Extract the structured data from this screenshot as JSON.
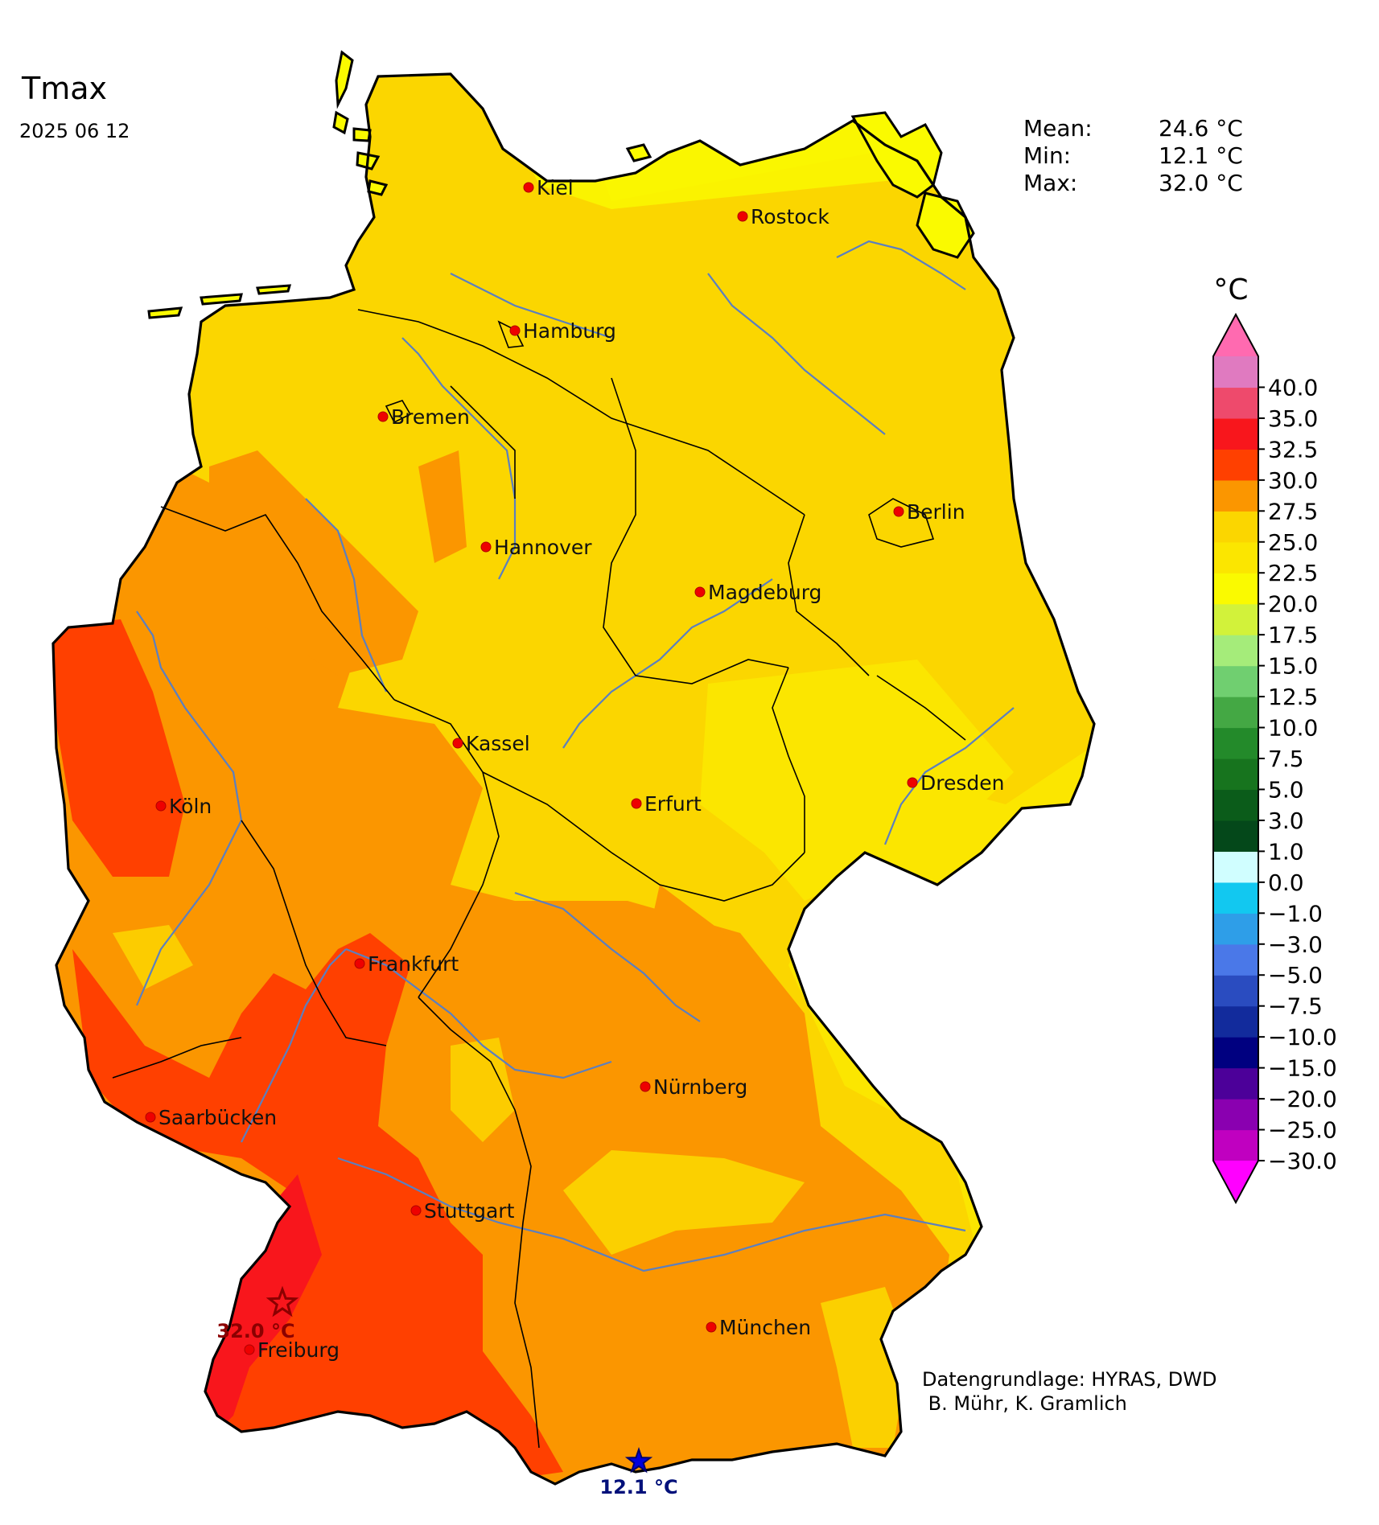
{
  "title": "Tmax",
  "date": "2025 06 12",
  "stats": [
    {
      "label": "Mean:",
      "value": "24.6 °C"
    },
    {
      "label": "Min:",
      "value": "12.1 °C"
    },
    {
      "label": "Max:",
      "value": "32.0 °C"
    }
  ],
  "credits": [
    "Datengrundlage: HYRAS, DWD",
    " B. Mühr, K. Gramlich"
  ],
  "colorbar": {
    "unit": "°C",
    "extend": "both",
    "levels": [
      "−30.0",
      "−25.0",
      "−20.0",
      "−15.0",
      "−10.0",
      "−7.5",
      "−5.0",
      "−3.0",
      "−1.0",
      "0.0",
      "1.0",
      "3.0",
      "5.0",
      "7.5",
      "10.0",
      "12.5",
      "15.0",
      "17.5",
      "20.0",
      "22.5",
      "25.0",
      "27.5",
      "30.0",
      "32.5",
      "35.0",
      "40.0"
    ],
    "colors": [
      "#c000c0",
      "#8a00b0",
      "#4c0099",
      "#000080",
      "#122b9c",
      "#2a4cc0",
      "#4a78e8",
      "#2e9ee8",
      "#12c8f0",
      "#d0feff",
      "#04481a",
      "#0b5c1a",
      "#17741e",
      "#238a2a",
      "#44a844",
      "#70cf70",
      "#a5ec7a",
      "#d2f23a",
      "#fafa00",
      "#fbe600",
      "#fbd600",
      "#fb9600",
      "#ff4000",
      "#f8161c",
      "#ee4a6c",
      "#e07ac0"
    ],
    "under_color": "#ff00ff",
    "over_color": "#ff6ab0"
  },
  "cities": [
    {
      "name": "Kiel",
      "dot": "red"
    },
    {
      "name": "Rostock",
      "dot": "red"
    },
    {
      "name": "Hamburg",
      "dot": "red"
    },
    {
      "name": "Bremen",
      "dot": "red"
    },
    {
      "name": "Berlin",
      "dot": "red"
    },
    {
      "name": "Hannover",
      "dot": "red"
    },
    {
      "name": "Magdeburg",
      "dot": "red"
    },
    {
      "name": "Kassel",
      "dot": "red"
    },
    {
      "name": "Köln",
      "dot": "red"
    },
    {
      "name": "Erfurt",
      "dot": "red"
    },
    {
      "name": "Dresden",
      "dot": "red"
    },
    {
      "name": "Frankfurt",
      "dot": "red"
    },
    {
      "name": "Nürnberg",
      "dot": "red"
    },
    {
      "name": "Saarbücken",
      "dot": "red"
    },
    {
      "name": "Stuttgart",
      "dot": "red"
    },
    {
      "name": "München",
      "dot": "red"
    },
    {
      "name": "Freiburg",
      "dot": "red"
    }
  ],
  "markers": {
    "max": {
      "label": "32.0 °C",
      "symbol": "star-outline",
      "color": "#8b0000"
    },
    "min": {
      "label": "12.1 °C",
      "symbol": "star-filled",
      "color": "#0000cc"
    }
  },
  "map_colors": {
    "pale_yellow": "#fafa00",
    "yellow": "#fbe600",
    "gold": "#fbd600",
    "orange": "#fb9600",
    "red_orange": "#ff4000",
    "red": "#f8161c",
    "river": "#5b7fc0",
    "border": "#000000"
  }
}
